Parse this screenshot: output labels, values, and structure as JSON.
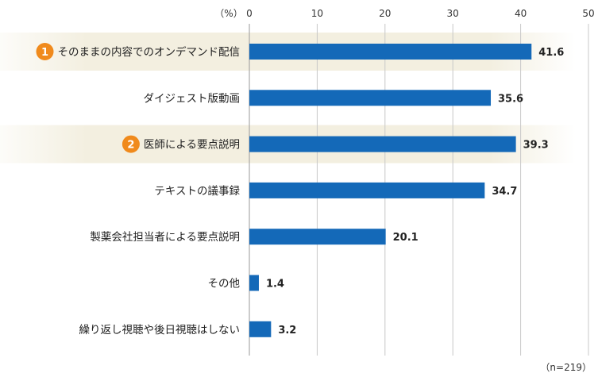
{
  "chart_data": {
    "type": "bar",
    "orientation": "horizontal",
    "unit_label": "（%）",
    "note": "（n=219）",
    "xlim": [
      0,
      50
    ],
    "ticks": [
      0,
      10,
      20,
      30,
      40,
      50
    ],
    "grid": true,
    "bar_color": "#1469b8",
    "highlight_color": "#f3efe0",
    "badge_color": "#f08a1c",
    "categories": [
      "そのままの内容でのオンデマンド配信",
      "ダイジェスト版動画",
      "医師による要点説明",
      "テキストの議事録",
      "製薬会社担当者による要点説明",
      "その他",
      "繰り返し視聴や後日視聴はしない"
    ],
    "values": [
      41.6,
      35.6,
      39.3,
      34.7,
      20.1,
      1.4,
      3.2
    ],
    "value_labels": [
      "41.6",
      "35.6",
      "39.3",
      "34.7",
      "20.1",
      "1.4",
      "3.2"
    ],
    "highlights": [
      {
        "index": 0,
        "rank": "1"
      },
      {
        "index": 2,
        "rank": "2"
      }
    ]
  }
}
